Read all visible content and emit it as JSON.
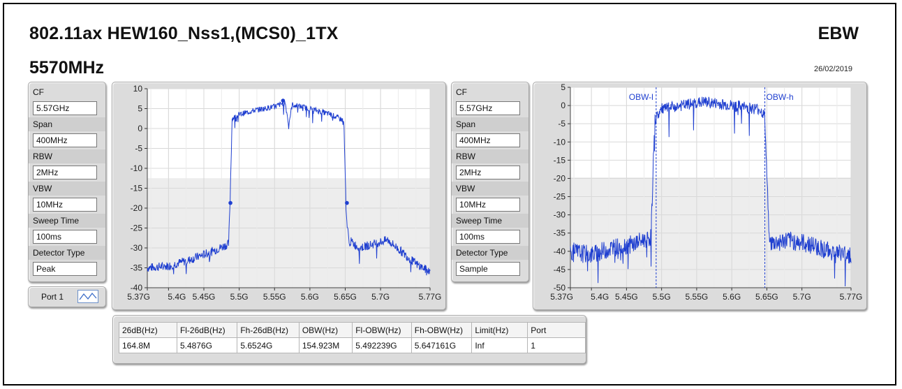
{
  "header": {
    "title": "802.11ax HEW160_Nss1,(MCS0)_1TX",
    "frequency": "5570MHz",
    "measurement": "EBW",
    "date": "26/02/2019"
  },
  "settings_left": {
    "items": [
      {
        "label": "CF",
        "value": "5.57GHz"
      },
      {
        "label": "Span",
        "value": "400MHz"
      },
      {
        "label": "RBW",
        "value": "2MHz"
      },
      {
        "label": "VBW",
        "value": "10MHz"
      },
      {
        "label": "Sweep Time",
        "value": "100ms"
      },
      {
        "label": "Detector Type",
        "value": "Peak"
      }
    ]
  },
  "settings_right": {
    "items": [
      {
        "label": "CF",
        "value": "5.57GHz"
      },
      {
        "label": "Span",
        "value": "400MHz"
      },
      {
        "label": "RBW",
        "value": "2MHz"
      },
      {
        "label": "VBW",
        "value": "10MHz"
      },
      {
        "label": "Sweep Time",
        "value": "100ms"
      },
      {
        "label": "Detector Type",
        "value": "Sample"
      }
    ]
  },
  "port": {
    "label": "Port 1"
  },
  "results_table": {
    "headers": [
      "26dB(Hz)",
      "Fl-26dB(Hz)",
      "Fh-26dB(Hz)",
      "OBW(Hz)",
      "Fl-OBW(Hz)",
      "Fh-OBW(Hz)",
      "Limit(Hz)",
      "Port"
    ],
    "rows": [
      [
        "164.8M",
        "5.4876G",
        "5.6524G",
        "154.923M",
        "5.492239G",
        "5.647161G",
        "Inf",
        "1"
      ]
    ]
  },
  "colors": {
    "trace": "#1f3fd0",
    "marker": "#1f3fd0",
    "grid": "#d8d8d8",
    "plot_bg": "#ffffff",
    "lower_band": "#e4e4e4"
  },
  "chart_data": [
    {
      "type": "line",
      "xlabel": "",
      "ylabel": "",
      "xlim": [
        5.37,
        5.77
      ],
      "ylim": [
        -40,
        10
      ],
      "x_ticks": [
        5.37,
        5.4,
        5.45,
        5.5,
        5.55,
        5.6,
        5.65,
        5.7,
        5.77
      ],
      "x_tick_labels": [
        "5.37G",
        "5.4G",
        "5.45G",
        "5.5G",
        "5.55G",
        "5.6G",
        "5.65G",
        "5.7G",
        "5.77G"
      ],
      "y_ticks": [
        10,
        5,
        0,
        -5,
        -10,
        -15,
        -20,
        -25,
        -30,
        -35,
        -40
      ],
      "y_tick_labels": [
        "10",
        "5",
        "0",
        "-5",
        "-10",
        "-15",
        "-20",
        "-25",
        "-30",
        "-35",
        "-40"
      ],
      "grid": true,
      "series": [
        {
          "x": [
            5.37,
            5.4,
            5.43,
            5.46,
            5.485,
            5.487,
            5.49,
            5.5,
            5.52,
            5.55,
            5.565,
            5.57,
            5.575,
            5.6,
            5.63,
            5.648,
            5.651,
            5.652,
            5.655,
            5.67,
            5.69,
            5.71,
            5.73,
            5.75,
            5.77
          ],
          "y": [
            -35,
            -34.5,
            -33,
            -31,
            -29,
            -18.7,
            2.5,
            3.5,
            4.5,
            5.5,
            6.5,
            1,
            6,
            5,
            3.5,
            2,
            -18.7,
            -23,
            -28,
            -30,
            -29,
            -28,
            -31,
            -34,
            -36
          ]
        }
      ],
      "markers": [
        {
          "x": 5.4876,
          "y": -18.7
        },
        {
          "x": 5.562,
          "y": 7
        },
        {
          "x": 5.6524,
          "y": -18.7
        }
      ]
    },
    {
      "type": "line",
      "xlabel": "",
      "ylabel": "",
      "xlim": [
        5.37,
        5.77
      ],
      "ylim": [
        -50,
        5
      ],
      "x_ticks": [
        5.37,
        5.4,
        5.45,
        5.5,
        5.55,
        5.6,
        5.65,
        5.7,
        5.77
      ],
      "x_tick_labels": [
        "5.37G",
        "5.4G",
        "5.45G",
        "5.5G",
        "5.55G",
        "5.6G",
        "5.65G",
        "5.7G",
        "5.77G"
      ],
      "y_ticks": [
        5,
        0,
        -5,
        -10,
        -15,
        -20,
        -25,
        -30,
        -35,
        -40,
        -45,
        -50
      ],
      "y_tick_labels": [
        "5",
        "0",
        "-5",
        "-10",
        "-15",
        "-20",
        "-25",
        "-30",
        "-35",
        "-40",
        "-45",
        "-50"
      ],
      "grid": true,
      "series": [
        {
          "x": [
            5.37,
            5.4,
            5.43,
            5.46,
            5.485,
            5.49,
            5.5,
            5.53,
            5.56,
            5.6,
            5.64,
            5.647,
            5.652,
            5.655,
            5.68,
            5.71,
            5.74,
            5.77
          ],
          "y": [
            -40,
            -41,
            -39,
            -38,
            -36,
            -4,
            -1,
            0,
            1,
            0,
            -1,
            -3,
            -30,
            -38,
            -37,
            -38,
            -40,
            -41
          ]
        }
      ],
      "vlines": [
        {
          "x": 5.492239,
          "label": "OBW-l"
        },
        {
          "x": 5.647161,
          "label": "OBW-h"
        }
      ]
    }
  ]
}
